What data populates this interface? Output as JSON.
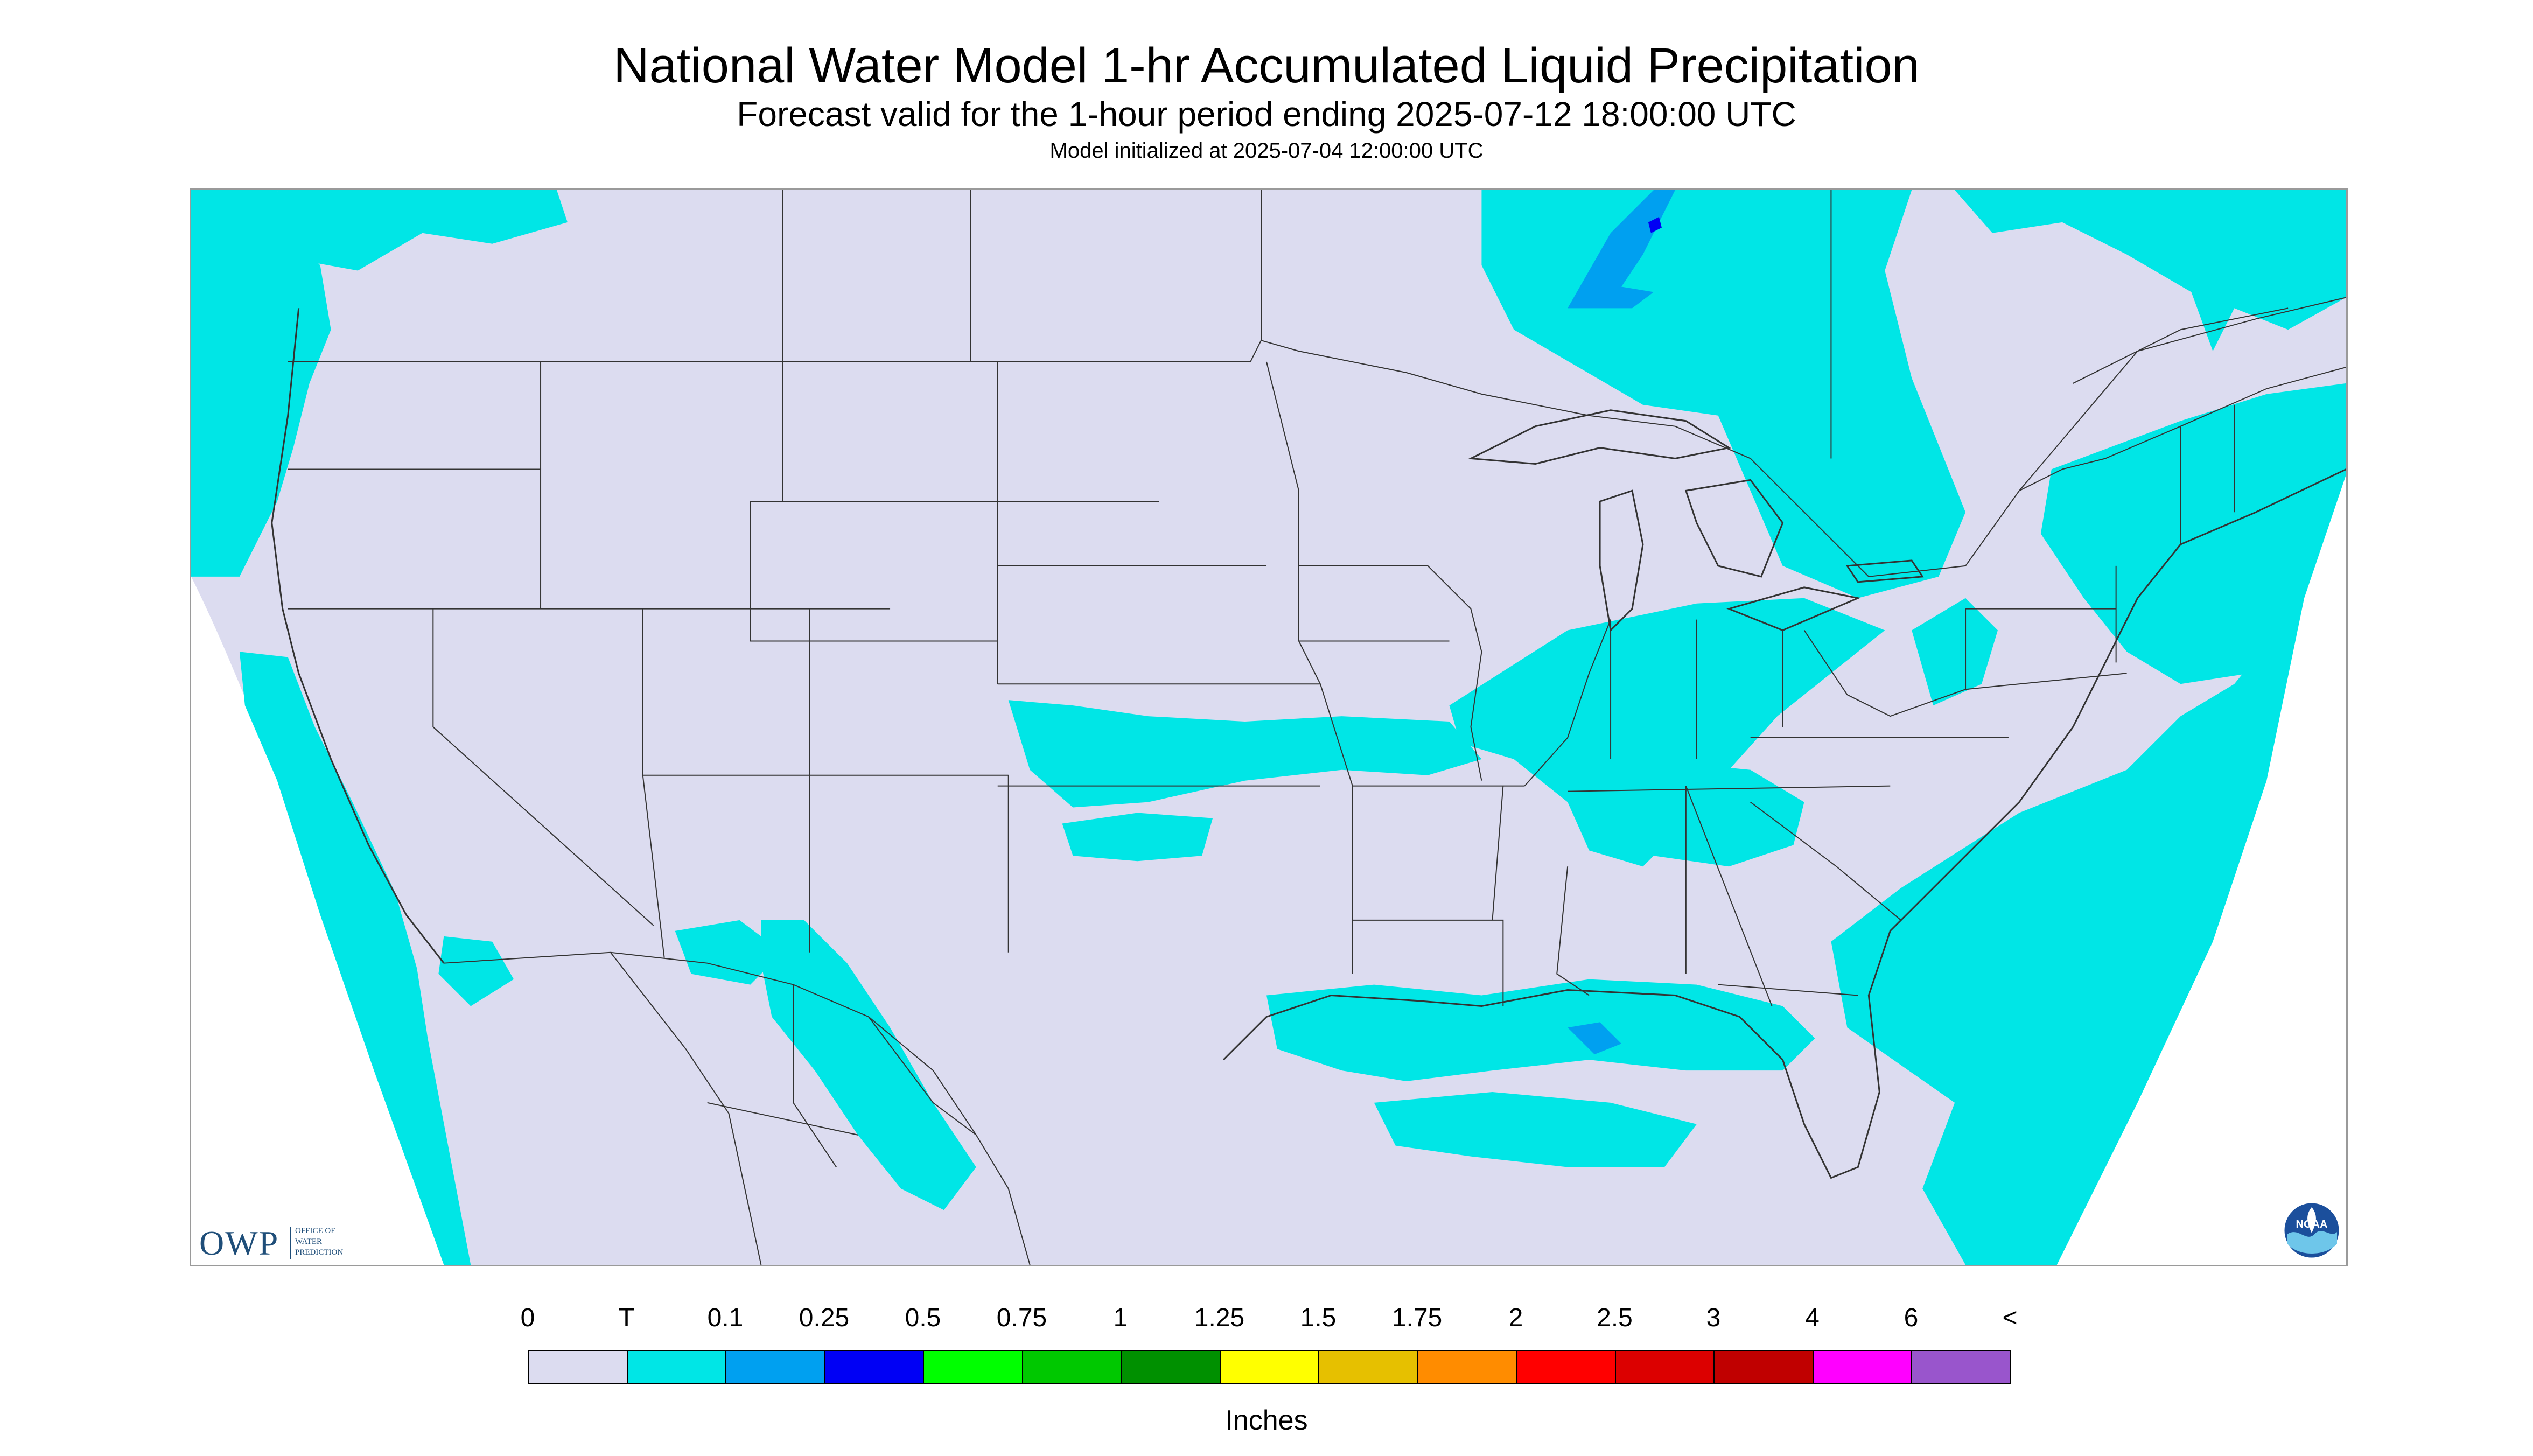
{
  "titles": {
    "main": "National Water Model 1-hr Accumulated Liquid Precipitation",
    "sub": "Forecast valid for the 1-hour period ending 2025-07-12 18:00:00 UTC",
    "init": "Model initialized at 2025-07-04 12:00:00 UTC"
  },
  "logos": {
    "owp": {
      "mark": "OWP",
      "lines": [
        "OFFICE OF",
        "WATER",
        "PREDICTION"
      ]
    },
    "noaa": {
      "mark": "NOAA"
    }
  },
  "legend": {
    "units": "Inches",
    "labels": [
      "0",
      "T",
      "0.1",
      "0.25",
      "0.5",
      "0.75",
      "1",
      "1.25",
      "1.5",
      "1.75",
      "2",
      "2.5",
      "3",
      "4",
      "6",
      "<"
    ],
    "colors": [
      "#dcdcf0",
      "#00e6e6",
      "#00a0f0",
      "#0000f5",
      "#00ff00",
      "#00c800",
      "#009000",
      "#ffff00",
      "#e6c000",
      "#ff8c00",
      "#ff0000",
      "#dc0000",
      "#c00000",
      "#ff00ff",
      "#9955cc"
    ]
  },
  "map_colors": {
    "no_precip": "#dcdcf0",
    "trace": "#00e6e6",
    "light": "#00a0f0",
    "moderate": "#0000f5",
    "boundary": "#333333",
    "outside": "#ffffff"
  }
}
